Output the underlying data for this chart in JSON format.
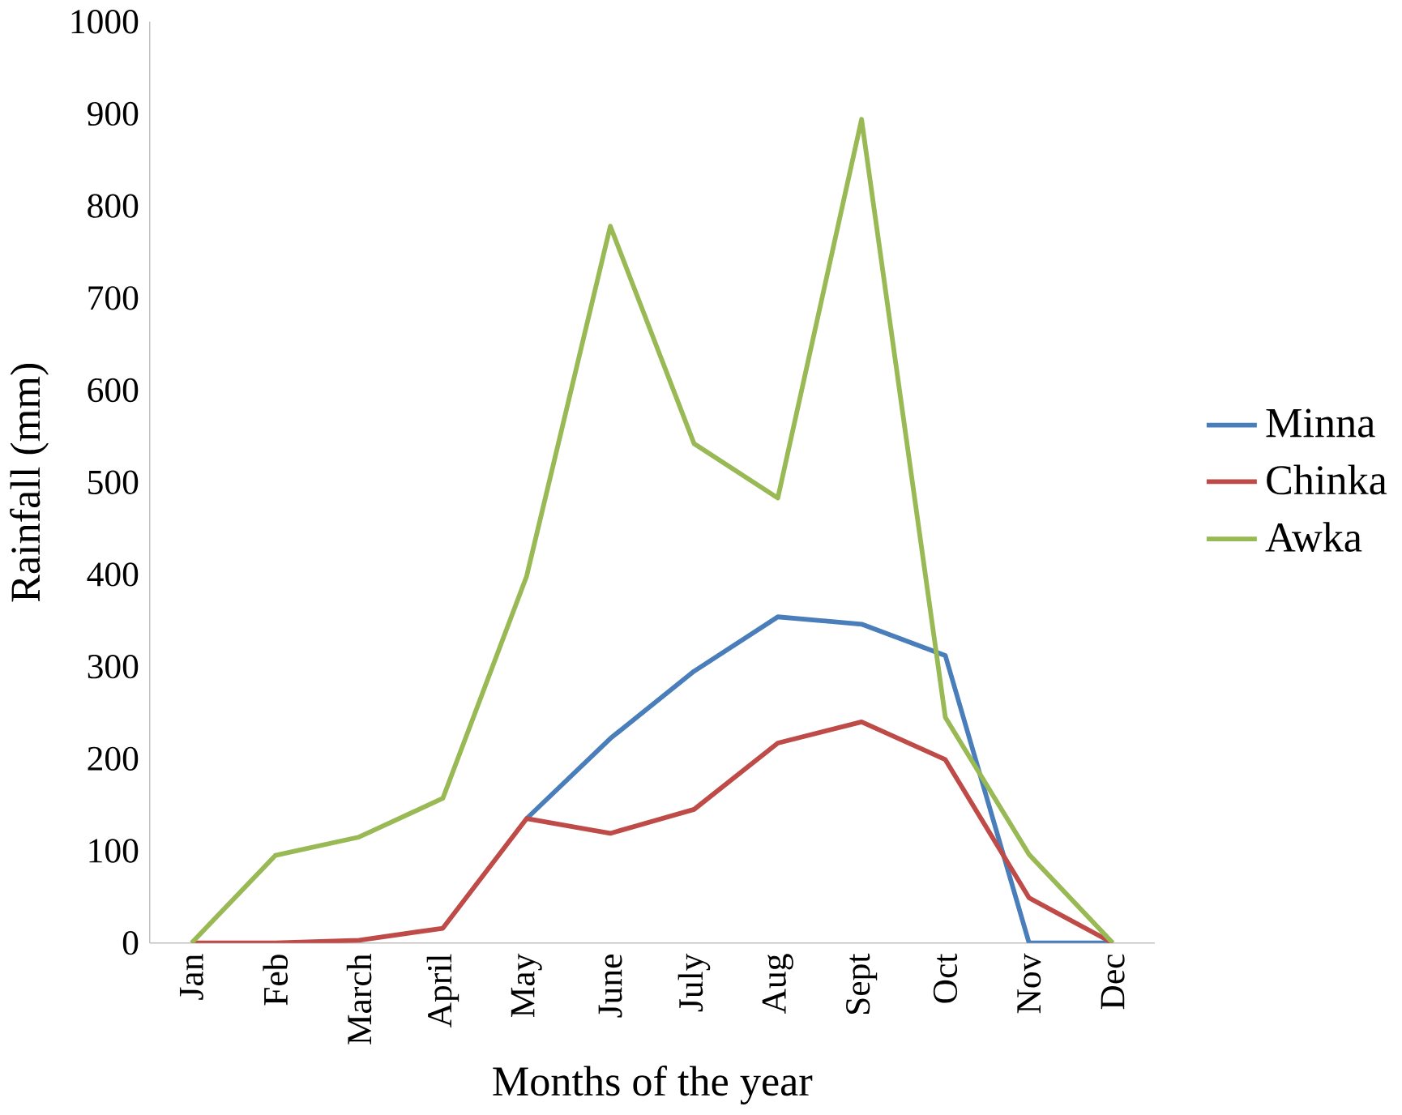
{
  "chart_data": {
    "type": "line",
    "xlabel": "Months of the year",
    "ylabel": "Rainfall (mm)",
    "categories": [
      "Jan",
      "Feb",
      "March",
      "April",
      "May",
      "June",
      "July",
      "Aug",
      "Sept",
      "Oct",
      "Nov",
      "Dec"
    ],
    "ylim": [
      0,
      1000
    ],
    "yticks": [
      0,
      100,
      200,
      300,
      400,
      500,
      600,
      700,
      800,
      900,
      1000
    ],
    "grid": false,
    "legend": "right",
    "marker": "none",
    "line_style": "solid",
    "series": [
      {
        "name": "Minna",
        "color": "#4a7ebb",
        "values": [
          null,
          null,
          null,
          null,
          135,
          222,
          295,
          354,
          346,
          312,
          0,
          0
        ]
      },
      {
        "name": "Chinka",
        "color": "#be4b48",
        "values": [
          0,
          0,
          3,
          16,
          135,
          119,
          145,
          217,
          240,
          199,
          49,
          0
        ]
      },
      {
        "name": "Awka",
        "color": "#98b954",
        "values": [
          0,
          95,
          115,
          157,
          398,
          778,
          542,
          483,
          894,
          245,
          96,
          0
        ]
      }
    ]
  }
}
